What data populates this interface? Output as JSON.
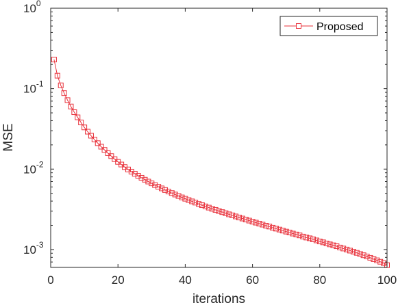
{
  "chart_data": {
    "type": "line",
    "xlabel": "iterations",
    "ylabel": "MSE",
    "xlim": [
      0,
      100
    ],
    "ylim": [
      0.0006,
      1
    ],
    "yscale": "log",
    "grid": false,
    "legend_position": "top-right",
    "x_ticks": [
      "0",
      "20",
      "40",
      "60",
      "80",
      "100"
    ],
    "y_ticks": [
      {
        "base": "10",
        "exp": "0",
        "value": 1
      },
      {
        "base": "10",
        "exp": "-1",
        "value": 0.1
      },
      {
        "base": "10",
        "exp": "-2",
        "value": 0.01
      },
      {
        "base": "10",
        "exp": "-3",
        "value": 0.001
      }
    ],
    "series": [
      {
        "name": "Proposed",
        "color": "#e8303a",
        "marker": "square",
        "x": [
          1,
          2,
          3,
          4,
          5,
          6,
          7,
          8,
          9,
          10,
          11,
          12,
          13,
          14,
          15,
          16,
          17,
          18,
          19,
          20,
          21,
          22,
          23,
          24,
          25,
          26,
          27,
          28,
          29,
          30,
          31,
          32,
          33,
          34,
          35,
          36,
          37,
          38,
          39,
          40,
          41,
          42,
          43,
          44,
          45,
          46,
          47,
          48,
          49,
          50,
          51,
          52,
          53,
          54,
          55,
          56,
          57,
          58,
          59,
          60,
          61,
          62,
          63,
          64,
          65,
          66,
          67,
          68,
          69,
          70,
          71,
          72,
          73,
          74,
          75,
          76,
          77,
          78,
          79,
          80,
          81,
          82,
          83,
          84,
          85,
          86,
          87,
          88,
          89,
          90,
          91,
          92,
          93,
          94,
          95,
          96,
          97,
          98,
          99,
          100
        ],
        "values": [
          0.23,
          0.145,
          0.11,
          0.088,
          0.072,
          0.06,
          0.051,
          0.044,
          0.038,
          0.033,
          0.0292,
          0.026,
          0.0233,
          0.021,
          0.019,
          0.0173,
          0.0158,
          0.0145,
          0.0133,
          0.0123,
          0.0114,
          0.0106,
          0.0099,
          0.0093,
          0.00875,
          0.00825,
          0.0078,
          0.00738,
          0.007,
          0.00665,
          0.00633,
          0.00603,
          0.00576,
          0.0055,
          0.00526,
          0.00504,
          0.00483,
          0.00463,
          0.00445,
          0.00428,
          0.00412,
          0.00397,
          0.00383,
          0.00369,
          0.00356,
          0.00344,
          0.00332,
          0.00321,
          0.00311,
          0.00301,
          0.00292,
          0.00283,
          0.00274,
          0.00266,
          0.00258,
          0.0025,
          0.00243,
          0.00236,
          0.00229,
          0.00222,
          0.00216,
          0.0021,
          0.00204,
          0.00198,
          0.00193,
          0.00187,
          0.00182,
          0.00177,
          0.00172,
          0.00167,
          0.00163,
          0.00158,
          0.00154,
          0.0015,
          0.00145,
          0.00141,
          0.00138,
          0.00134,
          0.0013,
          0.00126,
          0.00123,
          0.00119,
          0.00116,
          0.00113,
          0.0011,
          0.00106,
          0.00103,
          0.001,
          0.00097,
          0.00094,
          0.00091,
          0.00088,
          0.00085,
          0.00082,
          0.00079,
          0.00076,
          0.000735,
          0.000705,
          0.00068,
          0.00064
        ]
      }
    ]
  }
}
